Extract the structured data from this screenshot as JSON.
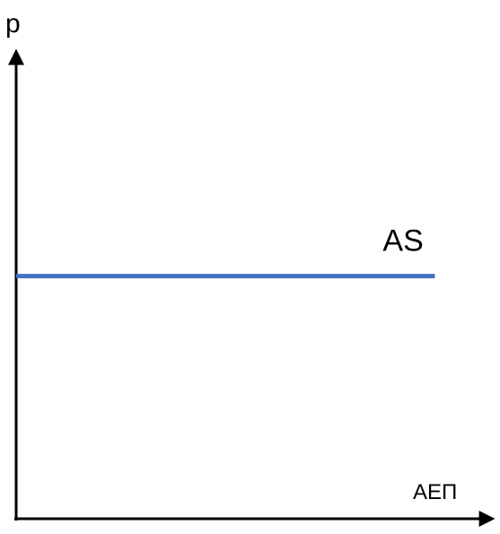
{
  "chart_data": {
    "type": "line",
    "title": "",
    "xlabel": "ΑΕΠ",
    "ylabel": "p",
    "grid": false,
    "series": [
      {
        "name": "AS",
        "color": "#4472C4",
        "x": [
          0.0,
          0.88
        ],
        "y": [
          0.52,
          0.52
        ]
      }
    ],
    "xlim": [
      0,
      1
    ],
    "ylim": [
      0,
      1
    ],
    "axis_color": "#000000"
  }
}
